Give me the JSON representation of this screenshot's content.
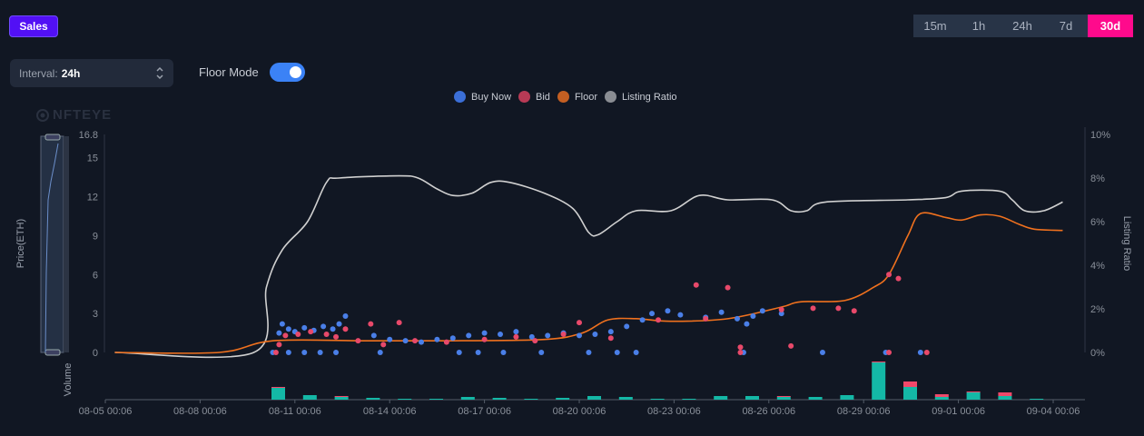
{
  "sales_button": "Sales",
  "interval": {
    "label": "Interval:",
    "value": "24h"
  },
  "floor_mode": {
    "label": "Floor Mode",
    "on": true
  },
  "time_ranges": [
    {
      "label": "15m"
    },
    {
      "label": "1h"
    },
    {
      "label": "24h"
    },
    {
      "label": "7d"
    },
    {
      "label": "30d",
      "active": true
    }
  ],
  "watermark": "NFTEYE",
  "colors": {
    "buy_now": "#4a7fe8",
    "bid": "#e8496a",
    "floor": "#f0711e",
    "listing": "#d0d0d0",
    "vol_buy": "#14b8a6",
    "vol_bid": "#f0486a"
  },
  "chart_data": {
    "type": "scatter+line+bar",
    "legend": [
      {
        "name": "Buy Now"
      },
      {
        "name": "Bid"
      },
      {
        "name": "Floor"
      },
      {
        "name": "Listing Ratio"
      }
    ],
    "legend_position": "top-center",
    "ylabel": "Price(ETH)",
    "y2label": "Listing Ratio",
    "volume_label": "Volume",
    "ylim": [
      0,
      16.8
    ],
    "y2lim": [
      0,
      10
    ],
    "xlim_days": [
      0,
      31
    ],
    "y_ticks": [
      "0",
      "3",
      "6",
      "9",
      "12",
      "15",
      "16.8"
    ],
    "y_tick_values": [
      0,
      3,
      6,
      9,
      12,
      15,
      16.8
    ],
    "y2_ticks": [
      "0%",
      "2%",
      "4%",
      "6%",
      "8%",
      "10%"
    ],
    "y2_tick_values": [
      0,
      2,
      4,
      6,
      8,
      10
    ],
    "x_ticks": [
      "08-05 00:06",
      "08-08 00:06",
      "08-11 00:06",
      "08-14 00:06",
      "08-17 00:06",
      "08-20 00:06",
      "08-23 00:06",
      "08-26 00:06",
      "08-29 00:06",
      "09-01 00:06",
      "09-04 00:06"
    ],
    "x_tick_days": [
      0,
      3,
      6,
      9,
      12,
      15,
      18,
      21,
      24,
      27,
      30
    ],
    "floor": [
      [
        0.3,
        0
      ],
      [
        3.6,
        0
      ],
      [
        5.3,
        0.9
      ],
      [
        8.2,
        0.9
      ],
      [
        11,
        0.9
      ],
      [
        13.9,
        1.0
      ],
      [
        15.1,
        1.5
      ],
      [
        15.9,
        2.5
      ],
      [
        16.8,
        2.6
      ],
      [
        17.9,
        2.4
      ],
      [
        19.7,
        2.6
      ],
      [
        21.4,
        3.5
      ],
      [
        22,
        3.9
      ],
      [
        23.4,
        4.0
      ],
      [
        24.3,
        5.0
      ],
      [
        24.8,
        6.0
      ],
      [
        25.4,
        9.0
      ],
      [
        25.8,
        10.7
      ],
      [
        26.6,
        10.4
      ],
      [
        27.1,
        10.2
      ],
      [
        27.7,
        10.6
      ],
      [
        28.3,
        10.5
      ],
      [
        28.9,
        9.9
      ],
      [
        29.4,
        9.5
      ],
      [
        30.3,
        9.4
      ]
    ],
    "listing_ratio": [
      [
        0.3,
        0
      ],
      [
        4.7,
        0
      ],
      [
        5.1,
        3
      ],
      [
        5.6,
        4.7
      ],
      [
        6.4,
        6
      ],
      [
        7.0,
        7.8
      ],
      [
        7.4,
        8
      ],
      [
        9.3,
        8.1
      ],
      [
        9.9,
        8
      ],
      [
        10.5,
        7.5
      ],
      [
        11,
        7.2
      ],
      [
        11.6,
        7.3
      ],
      [
        12.2,
        7.8
      ],
      [
        12.8,
        7.8
      ],
      [
        13.9,
        7.3
      ],
      [
        14.8,
        6.6
      ],
      [
        15.3,
        5.5
      ],
      [
        15.6,
        5.4
      ],
      [
        16.2,
        6
      ],
      [
        16.8,
        6.5
      ],
      [
        17.9,
        6.5
      ],
      [
        18.8,
        7.2
      ],
      [
        19.7,
        7
      ],
      [
        21.1,
        7
      ],
      [
        21.7,
        6.5
      ],
      [
        22.2,
        6.5
      ],
      [
        22.8,
        6.9
      ],
      [
        25.4,
        7
      ],
      [
        26.6,
        7.1
      ],
      [
        27.1,
        7.4
      ],
      [
        28.3,
        7.4
      ],
      [
        28.7,
        7
      ],
      [
        29.1,
        6.5
      ],
      [
        29.7,
        6.5
      ],
      [
        30.3,
        6.9
      ]
    ],
    "buy_now": [
      [
        5.3,
        0
      ],
      [
        5.5,
        1.5
      ],
      [
        5.6,
        2.2
      ],
      [
        5.8,
        1.8
      ],
      [
        6.0,
        1.6
      ],
      [
        6.3,
        1.9
      ],
      [
        6.6,
        1.7
      ],
      [
        6.9,
        2.0
      ],
      [
        7.2,
        1.8
      ],
      [
        7.4,
        2.2
      ],
      [
        7.6,
        2.8
      ],
      [
        5.8,
        0
      ],
      [
        6.3,
        0
      ],
      [
        6.8,
        0
      ],
      [
        7.3,
        0
      ],
      [
        8.7,
        0
      ],
      [
        8.5,
        1.3
      ],
      [
        9.0,
        1.0
      ],
      [
        9.5,
        0.9
      ],
      [
        10.0,
        0.8
      ],
      [
        10.5,
        1.0
      ],
      [
        11.0,
        1.1
      ],
      [
        11.5,
        1.3
      ],
      [
        12.0,
        1.5
      ],
      [
        12.5,
        1.4
      ],
      [
        13.0,
        1.6
      ],
      [
        11.2,
        0
      ],
      [
        11.8,
        0
      ],
      [
        12.6,
        0
      ],
      [
        13.5,
        1.2
      ],
      [
        14.0,
        1.3
      ],
      [
        14.5,
        1.5
      ],
      [
        15.0,
        1.3
      ],
      [
        15.5,
        1.4
      ],
      [
        16.0,
        1.6
      ],
      [
        16.5,
        2.0
      ],
      [
        17.0,
        2.5
      ],
      [
        17.3,
        3.0
      ],
      [
        17.8,
        3.2
      ],
      [
        18.2,
        2.9
      ],
      [
        13.8,
        0
      ],
      [
        15.3,
        0
      ],
      [
        16.2,
        0
      ],
      [
        16.8,
        0
      ],
      [
        19.0,
        2.7
      ],
      [
        19.5,
        3.1
      ],
      [
        20.0,
        2.6
      ],
      [
        20.5,
        2.8
      ],
      [
        20.8,
        3.2
      ],
      [
        21.4,
        3.0
      ],
      [
        20.2,
        0
      ],
      [
        22.7,
        0
      ],
      [
        24.7,
        0
      ],
      [
        25.8,
        0
      ],
      [
        20.3,
        2.2
      ]
    ],
    "bid": [
      [
        5.4,
        0
      ],
      [
        5.5,
        0.6
      ],
      [
        5.7,
        1.3
      ],
      [
        6.1,
        1.4
      ],
      [
        6.5,
        1.6
      ],
      [
        7.0,
        1.4
      ],
      [
        7.3,
        1.2
      ],
      [
        7.6,
        1.8
      ],
      [
        8.0,
        0.9
      ],
      [
        8.4,
        2.2
      ],
      [
        8.8,
        0.6
      ],
      [
        9.3,
        2.3
      ],
      [
        9.8,
        0.9
      ],
      [
        10.8,
        0.8
      ],
      [
        12.0,
        1.0
      ],
      [
        13.0,
        1.2
      ],
      [
        13.6,
        0.9
      ],
      [
        14.5,
        1.4
      ],
      [
        15.0,
        2.3
      ],
      [
        16.0,
        1.1
      ],
      [
        17.5,
        2.5
      ],
      [
        19.0,
        2.6
      ],
      [
        18.7,
        5.2
      ],
      [
        19.7,
        5.0
      ],
      [
        20.1,
        0
      ],
      [
        20.1,
        0.4
      ],
      [
        21.7,
        0.5
      ],
      [
        21.4,
        3.3
      ],
      [
        22.4,
        3.4
      ],
      [
        23.2,
        3.4
      ],
      [
        23.7,
        3.2
      ],
      [
        24.8,
        6.0
      ],
      [
        25.1,
        5.7
      ],
      [
        24.8,
        0
      ],
      [
        26.0,
        0
      ]
    ],
    "volume": [
      [
        5,
        13,
        1
      ],
      [
        6,
        5,
        0
      ],
      [
        7,
        3,
        1
      ],
      [
        8,
        2,
        0
      ],
      [
        9,
        1,
        0
      ],
      [
        10,
        1,
        0
      ],
      [
        11,
        3,
        0
      ],
      [
        12,
        2,
        0
      ],
      [
        13,
        1,
        0
      ],
      [
        14,
        2,
        0
      ],
      [
        15,
        4,
        0
      ],
      [
        16,
        3,
        0
      ],
      [
        17,
        1,
        0
      ],
      [
        18,
        1,
        0
      ],
      [
        19,
        4,
        0
      ],
      [
        20,
        4,
        0
      ],
      [
        21,
        3,
        1
      ],
      [
        22,
        3,
        0
      ],
      [
        23,
        5,
        0
      ],
      [
        24,
        41,
        1
      ],
      [
        25,
        14,
        6
      ],
      [
        26,
        3,
        3
      ],
      [
        27,
        8,
        1
      ],
      [
        28,
        4,
        4
      ],
      [
        29,
        1,
        0
      ]
    ]
  }
}
